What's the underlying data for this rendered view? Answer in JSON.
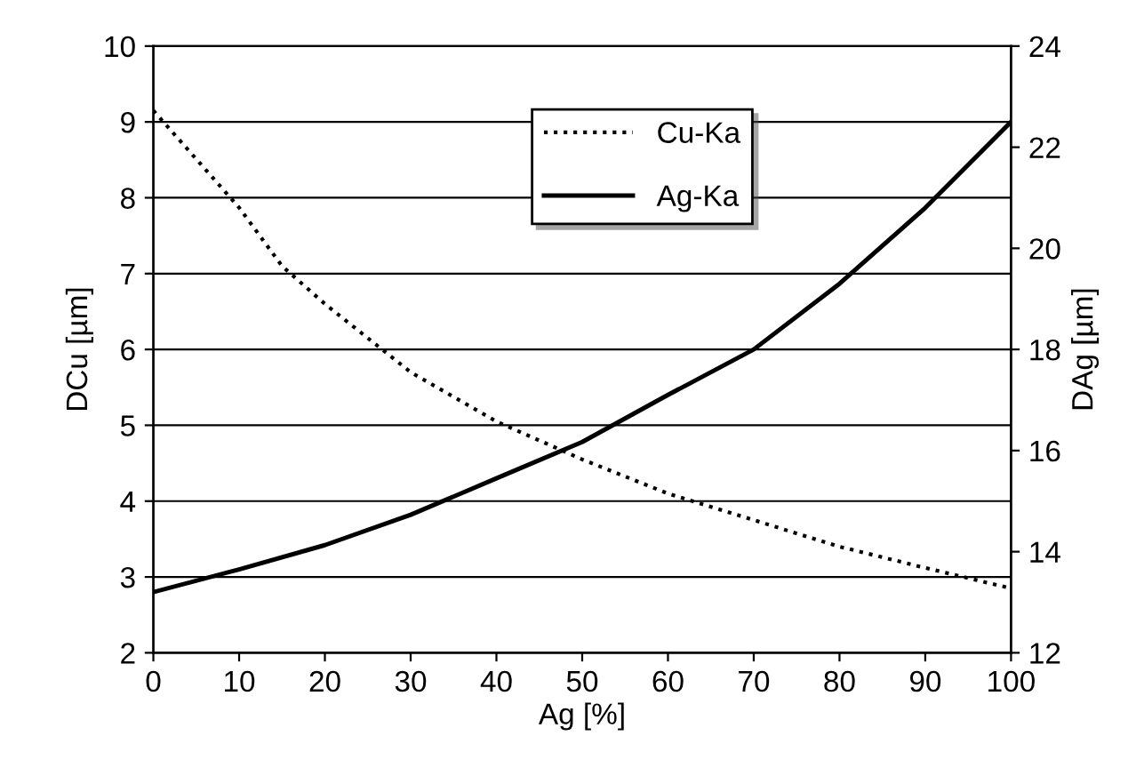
{
  "chart_data": {
    "type": "line",
    "xlabel": "Ag [%]",
    "ylabel": "DCu [µm]",
    "y2label": "DAg [µm]",
    "xlim": [
      0,
      100
    ],
    "xticks": [
      0,
      10,
      20,
      30,
      40,
      50,
      60,
      70,
      80,
      90,
      100
    ],
    "ylim": [
      2,
      10
    ],
    "yticks": [
      2,
      3,
      4,
      5,
      6,
      7,
      8,
      9,
      10
    ],
    "y2lim": [
      12,
      24
    ],
    "y2ticks": [
      12,
      14,
      16,
      18,
      20,
      22,
      24
    ],
    "grid": "y",
    "legend": "top",
    "marker": "none",
    "series": [
      {
        "name": "Cu-Ka",
        "color": "#000000",
        "line_style": "dotted",
        "x": [
          0,
          10,
          15,
          20,
          30,
          40,
          50,
          60,
          70,
          80,
          90,
          100
        ],
        "values": [
          9.15,
          7.87,
          7.1,
          6.6,
          5.7,
          5.05,
          4.55,
          4.1,
          3.75,
          3.4,
          3.12,
          2.85
        ]
      },
      {
        "name": "Ag-Ka",
        "color": "#000000",
        "line_style": "solid",
        "axis": "y2",
        "x": [
          0,
          10,
          20,
          30,
          40,
          50,
          60,
          70,
          80,
          90,
          100
        ],
        "values": [
          13.2,
          13.65,
          14.13,
          14.73,
          15.45,
          16.17,
          17.1,
          18.0,
          19.3,
          20.8,
          22.5
        ]
      }
    ]
  }
}
